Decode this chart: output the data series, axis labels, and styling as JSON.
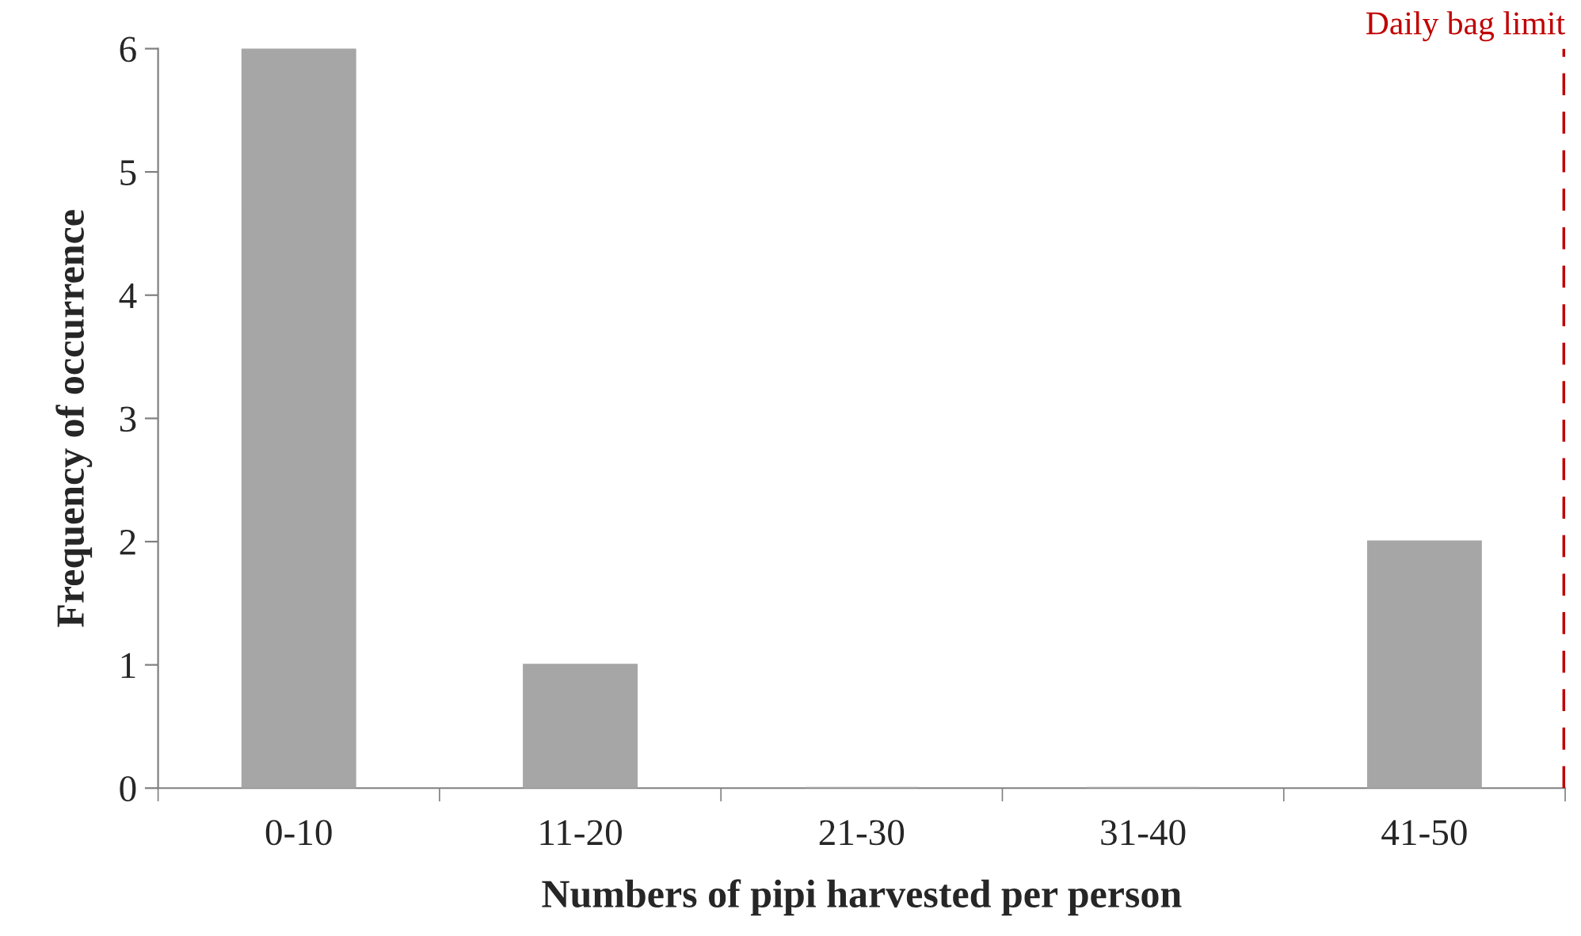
{
  "chart_data": {
    "type": "bar",
    "xlabel": "Numbers of pipi harvested per person",
    "ylabel": "Frequency of occurrence",
    "categories": [
      "0-10",
      "11-20",
      "21-30",
      "31-40",
      "41-50"
    ],
    "values": [
      6,
      1,
      0,
      0,
      2
    ],
    "color": "#a6a6a6",
    "ylim": [
      0,
      6
    ],
    "yticks": [
      0,
      1,
      2,
      3,
      4,
      5,
      6
    ],
    "grid": false,
    "annotations": [
      "Daily bag limit"
    ]
  }
}
